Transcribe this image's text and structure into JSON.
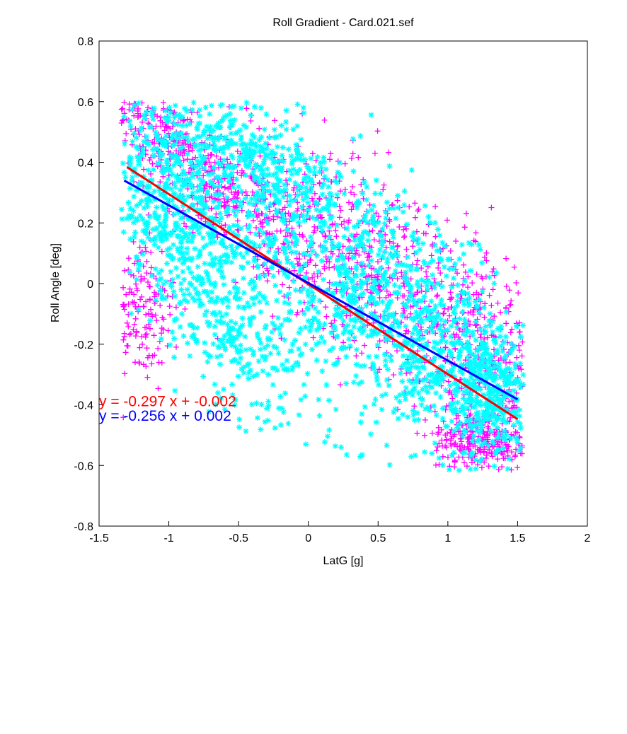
{
  "chart_data": {
    "type": "scatter",
    "title": "Roll Gradient - Card.021.sef",
    "xlabel": "LatG [g]",
    "ylabel": "Roll Angle [deg]",
    "xlim": [
      -1.5,
      2
    ],
    "ylim": [
      -0.8,
      0.8
    ],
    "xticks": [
      -1.5,
      -1,
      -0.5,
      0,
      0.5,
      1,
      1.5,
      2
    ],
    "yticks": [
      -0.8,
      -0.6,
      -0.4,
      -0.2,
      0,
      0.2,
      0.4,
      0.6,
      0.8
    ],
    "grid": false,
    "series": [
      {
        "color": "#ff00ff",
        "marker": "+",
        "clouds": [
          {
            "cx": -1.0,
            "cy": 0.45,
            "sx": 0.42,
            "sy": 0.07,
            "rot": -20,
            "n": 420
          },
          {
            "cx": -0.2,
            "cy": 0.18,
            "sx": 0.55,
            "sy": 0.12,
            "rot": -18,
            "n": 420
          },
          {
            "cx": 0.6,
            "cy": 0.05,
            "sx": 0.55,
            "sy": 0.15,
            "rot": -16,
            "n": 420
          },
          {
            "cx": 1.2,
            "cy": -0.25,
            "sx": 0.3,
            "sy": 0.15,
            "rot": -20,
            "n": 380
          },
          {
            "cx": 1.25,
            "cy": -0.52,
            "sx": 0.18,
            "sy": 0.05,
            "rot": 0,
            "n": 260
          },
          {
            "cx": -1.2,
            "cy": -0.08,
            "sx": 0.12,
            "sy": 0.12,
            "rot": 0,
            "n": 160
          }
        ],
        "fit": {
          "slope": -0.297,
          "intercept": -0.002,
          "x": [
            -1.3,
            1.5
          ]
        }
      },
      {
        "color": "#00ffff",
        "marker": "*",
        "clouds": [
          {
            "cx": -1.05,
            "cy": 0.3,
            "sx": 0.3,
            "sy": 0.14,
            "rot": -15,
            "n": 520
          },
          {
            "cx": -0.4,
            "cy": 0.4,
            "sx": 0.35,
            "sy": 0.09,
            "rot": -10,
            "n": 360
          },
          {
            "cx": 0.1,
            "cy": 0.0,
            "sx": 0.6,
            "sy": 0.2,
            "rot": -18,
            "n": 650
          },
          {
            "cx": 0.8,
            "cy": -0.12,
            "sx": 0.45,
            "sy": 0.17,
            "rot": -20,
            "n": 520
          },
          {
            "cx": 1.3,
            "cy": -0.35,
            "sx": 0.22,
            "sy": 0.1,
            "rot": -10,
            "n": 420
          },
          {
            "cx": -0.6,
            "cy": -0.15,
            "sx": 0.3,
            "sy": 0.12,
            "rot": -25,
            "n": 300
          }
        ],
        "fit": {
          "slope": -0.256,
          "intercept": 0.002,
          "x": [
            -1.32,
            1.5
          ]
        }
      }
    ],
    "annotations": [
      {
        "text": "y = -0.297 x + -0.002",
        "color": "#ff0000",
        "x": -1.5,
        "y": -0.405
      },
      {
        "text": "y = -0.256 x + 0.002",
        "color": "#0000ff",
        "x": -1.5,
        "y": -0.452
      }
    ]
  }
}
